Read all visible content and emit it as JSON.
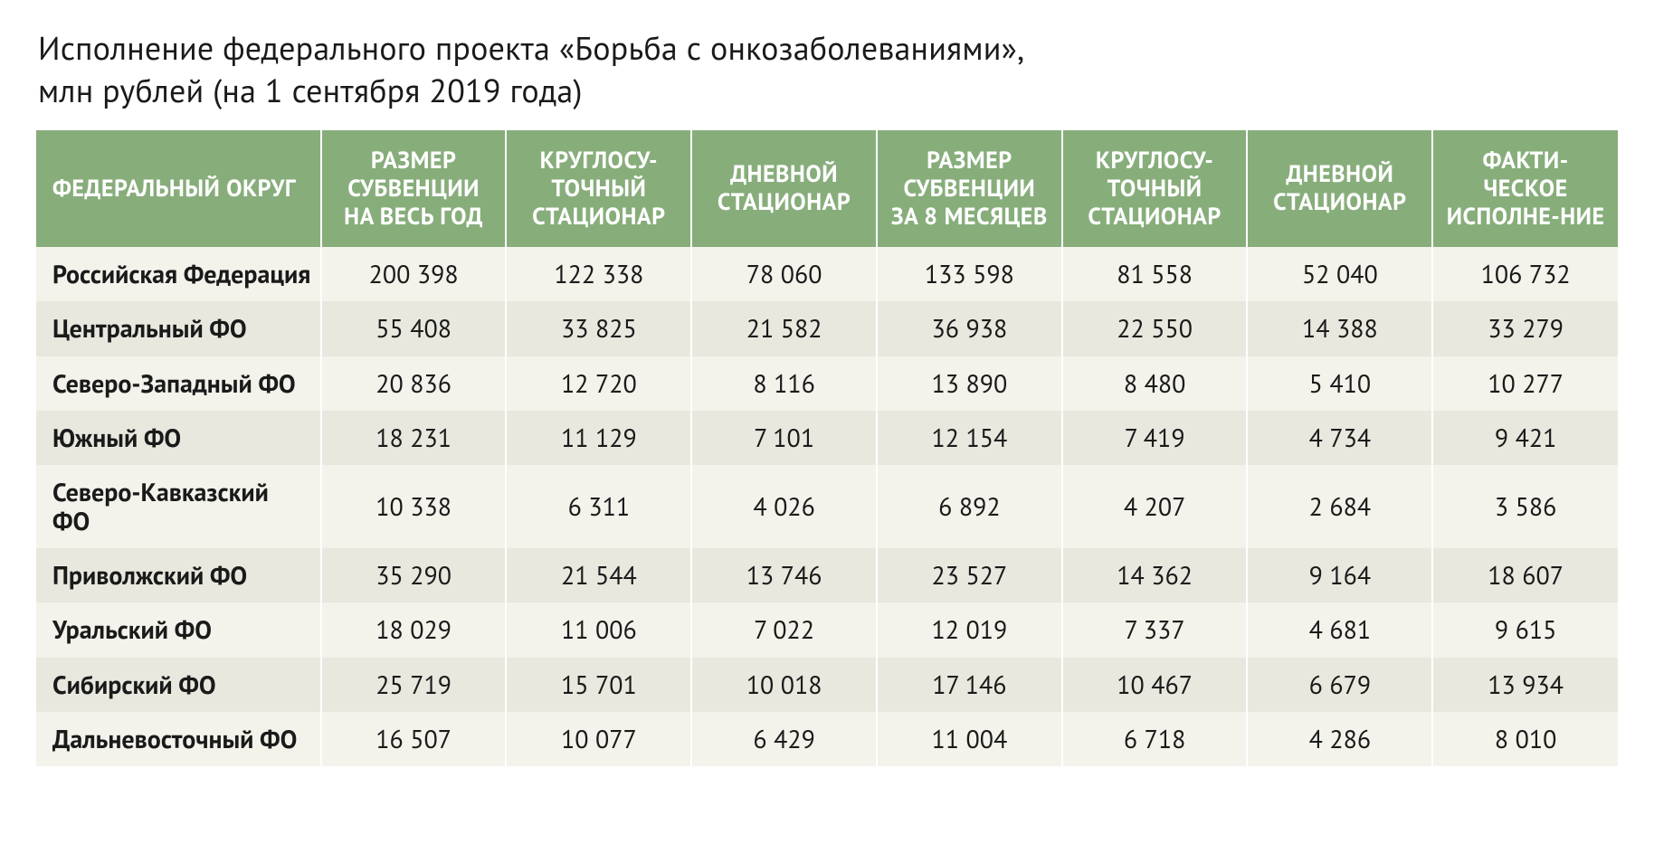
{
  "title_line1": "Исполнение федерального проекта «Борьба с онкозаболеваниями»,",
  "title_line2": "млн рублей (на 1 сентября 2019 года)",
  "table": {
    "type": "table",
    "header_bg": "#87ad7b",
    "header_fg": "#ffffff",
    "row_bg_odd": "#f3f2eb",
    "row_bg_even": "#e9e8df",
    "border_color": "#ffffff",
    "title_fontsize": 36,
    "header_fontsize": 26,
    "cell_fontsize": 28,
    "columns": [
      "ФЕДЕРАЛЬНЫЙ ОКРУГ",
      "РАЗМЕР СУБВЕНЦИИ НА ВЕСЬ ГОД",
      "КРУГЛОСУ-ТОЧНЫЙ СТАЦИОНАР",
      "ДНЕВНОЙ СТАЦИОНАР",
      "РАЗМЕР СУБВЕНЦИИ ЗА 8 МЕСЯЦЕВ",
      "КРУГЛОСУ-ТОЧНЫЙ СТАЦИОНАР",
      "ДНЕВНОЙ СТАЦИОНАР",
      "ФАКТИ-ЧЕСКОЕ ИСПОЛНЕ-НИЕ"
    ],
    "rows": [
      [
        "Российская Федерация",
        "200 398",
        "122 338",
        "78 060",
        "133 598",
        "81 558",
        "52 040",
        "106 732"
      ],
      [
        "Центральный ФО",
        "55 408",
        "33 825",
        "21 582",
        "36 938",
        "22 550",
        "14 388",
        "33 279"
      ],
      [
        "Северо-Западный ФО",
        "20 836",
        "12 720",
        "8 116",
        "13 890",
        "8 480",
        "5 410",
        "10 277"
      ],
      [
        "Южный ФО",
        "18 231",
        "11 129",
        "7 101",
        "12 154",
        "7 419",
        "4 734",
        "9 421"
      ],
      [
        "Северо-Кавказский ФО",
        "10 338",
        "6 311",
        "4 026",
        "6 892",
        "4 207",
        "2 684",
        "3 586"
      ],
      [
        "Приволжский ФО",
        "35 290",
        "21 544",
        "13 746",
        "23 527",
        "14 362",
        "9 164",
        "18 607"
      ],
      [
        "Уральский ФО",
        "18 029",
        "11 006",
        "7 022",
        "12 019",
        "7 337",
        "4 681",
        "9 615"
      ],
      [
        "Сибирский ФО",
        "25 719",
        "15 701",
        "10 018",
        "17 146",
        "10 467",
        "6 679",
        "13 934"
      ],
      [
        "Дальневосточный ФО",
        "16 507",
        "10 077",
        "6 429",
        "11 004",
        "6 718",
        "4 286",
        "8 010"
      ]
    ]
  }
}
